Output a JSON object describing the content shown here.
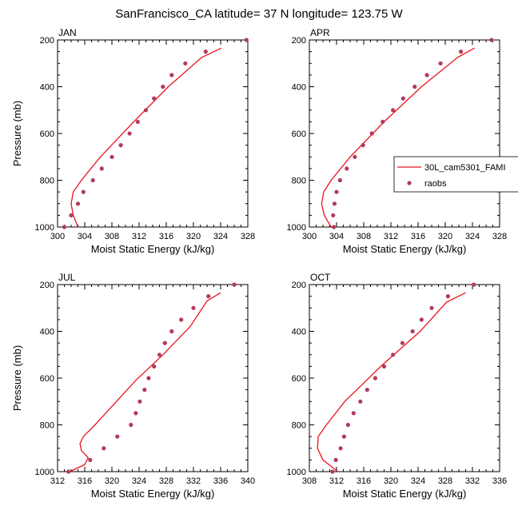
{
  "title": "SanFrancisco_CA  latitude= 37 N longitude= 123.75 W",
  "colors": {
    "model": "#e8141c",
    "obs": "#b23a5e",
    "axis": "#000000",
    "background": "#ffffff"
  },
  "legend": {
    "model_label": "30L_cam5301_FAMI",
    "obs_label": "raobs",
    "placement": "right"
  },
  "chart_data": [
    {
      "type": "line",
      "title": "JAN",
      "xlabel": "Moist Static Energy (kJ/kg)",
      "ylabel": "Pressure (mb)",
      "xlim": [
        300,
        328
      ],
      "ylim": [
        1000,
        200
      ],
      "xticks": [
        "300",
        "304",
        "308",
        "312",
        "316",
        "320",
        "324",
        "328"
      ],
      "yticks": [
        "200",
        "400",
        "600",
        "800",
        "1000"
      ],
      "series": [
        {
          "name": "30L_cam5301_FAMI",
          "kind": "line",
          "x": [
            303.0,
            302.3,
            302.0,
            302.3,
            303.5,
            306.3,
            311.2,
            316.3,
            321.2,
            324.1
          ],
          "y": [
            1000,
            950,
            900,
            850,
            800,
            700,
            550,
            400,
            275,
            235
          ]
        },
        {
          "name": "raobs",
          "kind": "scatter",
          "x": [
            301.0,
            302.0,
            303.0,
            303.8,
            305.2,
            306.5,
            308.0,
            309.3,
            310.6,
            311.8,
            313.0,
            314.2,
            315.5,
            316.8,
            318.8,
            321.8,
            327.8
          ],
          "y": [
            1000,
            950,
            900,
            850,
            800,
            750,
            700,
            650,
            600,
            550,
            500,
            450,
            400,
            350,
            300,
            250,
            200
          ]
        }
      ]
    },
    {
      "type": "line",
      "title": "APR",
      "xlabel": "Moist Static Energy (kJ/kg)",
      "ylabel": "",
      "xlim": [
        300,
        328
      ],
      "ylim": [
        1000,
        200
      ],
      "xticks": [
        "300",
        "304",
        "308",
        "312",
        "316",
        "320",
        "324",
        "328"
      ],
      "yticks": [
        "200",
        "400",
        "600",
        "800",
        "1000"
      ],
      "series": [
        {
          "name": "30L_cam5301_FAMI",
          "kind": "line",
          "x": [
            303.2,
            302.2,
            301.8,
            302.1,
            303.2,
            306.0,
            311.0,
            316.5,
            321.8,
            324.3
          ],
          "y": [
            1000,
            950,
            900,
            850,
            800,
            700,
            550,
            400,
            275,
            235
          ]
        },
        {
          "name": "raobs",
          "kind": "scatter",
          "x": [
            303.6,
            303.5,
            303.7,
            304.0,
            304.5,
            305.5,
            306.7,
            307.9,
            309.2,
            310.8,
            312.3,
            313.8,
            315.5,
            317.3,
            319.3,
            322.3,
            326.8
          ],
          "y": [
            1000,
            950,
            900,
            850,
            800,
            750,
            700,
            650,
            600,
            550,
            500,
            450,
            400,
            350,
            300,
            250,
            200
          ]
        }
      ]
    },
    {
      "type": "line",
      "title": "JUL",
      "xlabel": "Moist Static Energy (kJ/kg)",
      "ylabel": "Pressure (mb)",
      "xlim": [
        312,
        340
      ],
      "ylim": [
        1000,
        200
      ],
      "xticks": [
        "312",
        "316",
        "320",
        "324",
        "328",
        "332",
        "336",
        "340"
      ],
      "yticks": [
        "200",
        "400",
        "600",
        "800",
        "1000"
      ],
      "series": [
        {
          "name": "30L_cam5301_FAMI",
          "kind": "line",
          "x": [
            313.8,
            316.0,
            316.5,
            315.5,
            315.3,
            315.8,
            317.5,
            323.5,
            327.5,
            331.5,
            334.0,
            336.0
          ],
          "y": [
            1000,
            970,
            940,
            910,
            880,
            850,
            800,
            610,
            500,
            380,
            270,
            235
          ]
        },
        {
          "name": "raobs",
          "kind": "scatter",
          "x": [
            313.6,
            316.8,
            318.8,
            320.8,
            322.8,
            323.5,
            324.1,
            324.8,
            325.4,
            326.2,
            327.0,
            327.8,
            328.8,
            330.2,
            332.0,
            334.2,
            338.0
          ],
          "y": [
            1000,
            950,
            900,
            850,
            800,
            750,
            700,
            650,
            600,
            550,
            500,
            450,
            400,
            350,
            300,
            250,
            200
          ]
        }
      ]
    },
    {
      "type": "line",
      "title": "OCT",
      "xlabel": "Moist Static Energy (kJ/kg)",
      "ylabel": "",
      "xlim": [
        308,
        336
      ],
      "ylim": [
        1000,
        200
      ],
      "xticks": [
        "308",
        "312",
        "316",
        "320",
        "324",
        "328",
        "332",
        "336"
      ],
      "yticks": [
        "200",
        "400",
        "600",
        "800",
        "1000"
      ],
      "series": [
        {
          "name": "30L_cam5301_FAMI",
          "kind": "line",
          "x": [
            312.2,
            310.0,
            309.2,
            309.3,
            310.5,
            313.2,
            318.5,
            324.3,
            328.2,
            331.0
          ],
          "y": [
            1000,
            950,
            900,
            850,
            800,
            700,
            550,
            400,
            275,
            235
          ]
        },
        {
          "name": "raobs",
          "kind": "scatter",
          "x": [
            311.4,
            311.9,
            312.6,
            313.1,
            313.7,
            314.5,
            315.5,
            316.5,
            317.7,
            319.0,
            320.3,
            321.7,
            323.2,
            324.5,
            326.0,
            328.4,
            332.2
          ],
          "y": [
            1000,
            950,
            900,
            850,
            800,
            750,
            700,
            650,
            600,
            550,
            500,
            450,
            400,
            350,
            300,
            250,
            200
          ]
        }
      ]
    }
  ]
}
